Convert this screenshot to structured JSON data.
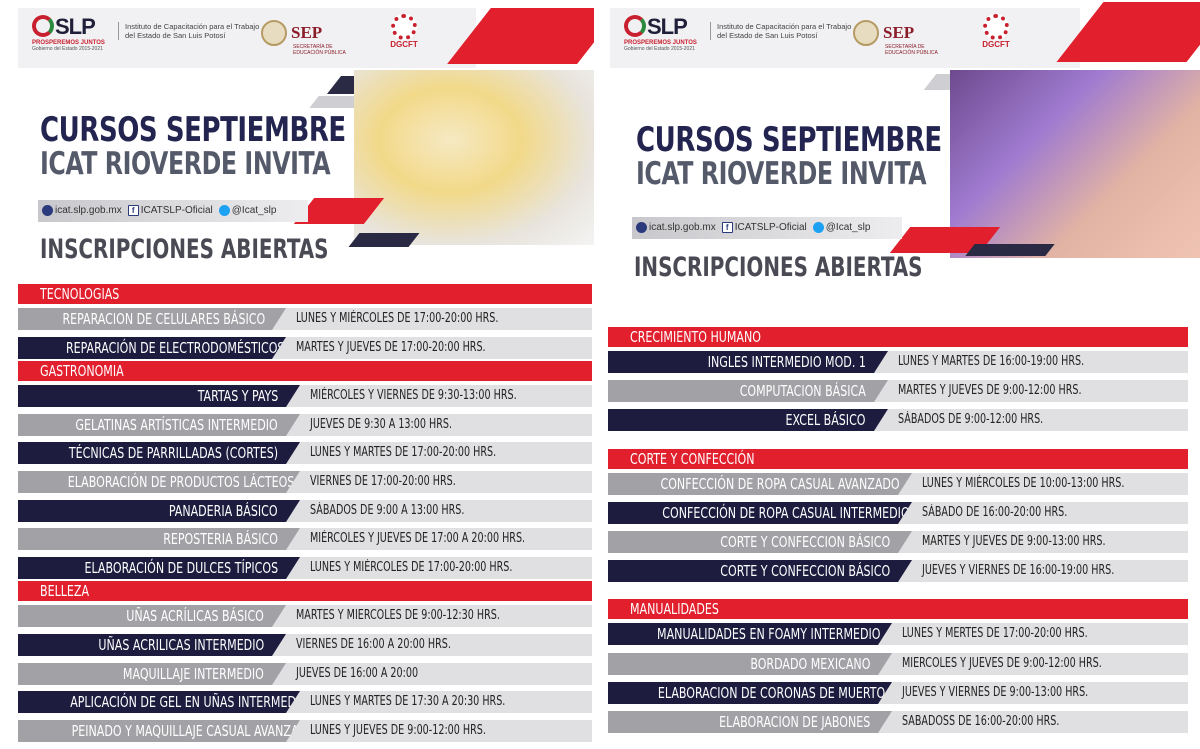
{
  "header": {
    "slp_logo": "SLP",
    "slp_tagline": "PROSPEREMOS JUNTOS",
    "slp_gov": "Gobierno del Estado 2015-2021",
    "institute": "Instituto de Capacitación para el Trabajo del Estado de San Luis Potosí",
    "sep": "SEP",
    "sep_sub": "SECRETARÍA DE EDUCACIÓN PÚBLICA",
    "dgcft": "DGCFT"
  },
  "title_line1": "CURSOS SEPTIEMBRE",
  "title_line2": "ICAT RIOVERDE INVITA",
  "social": {
    "web": "icat.slp.gob.mx",
    "facebook": "ICATSLP-Oficial",
    "twitter": "@Icat_slp"
  },
  "inscripciones": "INSCRIPCIONES ABIERTAS",
  "left": {
    "sections": [
      {
        "category": "TECNOLOGIAS",
        "courses": [
          {
            "name": "REPARACION DE CELULARES BÁSICO",
            "schedule": "LUNES Y MIÉRCOLES DE 17:00-20:00 HRS.",
            "style": "gray"
          },
          {
            "name": "REPARACIÓN DE ELECTRODOMÉSTICOS",
            "schedule": "MARTES Y JUEVES DE 17:00-20:00 HRS.",
            "style": "dark"
          }
        ]
      },
      {
        "category": "GASTRONOMIA",
        "courses": [
          {
            "name": "TARTAS Y PAYS",
            "schedule": "MIÉRCOLES Y VIERNES DE 9:30-13:00 HRS.",
            "style": "dark"
          },
          {
            "name": "GELATINAS ARTÍSTICAS INTERMEDIO",
            "schedule": "JUEVES DE 9:30 A 13:00 HRS.",
            "style": "gray"
          },
          {
            "name": "TÉCNICAS DE PARRILLADAS (CORTES)",
            "schedule": "LUNES Y MARTES DE 17:00-20:00 HRS.",
            "style": "dark"
          },
          {
            "name": "ELABORACIÓN DE PRODUCTOS LÁCTEOS",
            "schedule": "VIERNES DE 17:00-20:00 HRS.",
            "style": "gray"
          },
          {
            "name": "PANADERIA BÁSICO",
            "schedule": "SÁBADOS DE 9:00 A 13:00 HRS.",
            "style": "dark"
          },
          {
            "name": "REPOSTERIA BÁSICO",
            "schedule": "MIÉRCOLES Y JUEVES DE 17:00 A 20:00 HRS.",
            "style": "gray"
          },
          {
            "name": "ELABORACIÓN DE DULCES TÍPICOS",
            "schedule": "LUNES Y MIÉRCOLES DE 17:00-20:00 HRS.",
            "style": "dark"
          }
        ]
      },
      {
        "category": "BELLEZA",
        "courses": [
          {
            "name": "UÑAS ACRÍLICAS BÁSICO",
            "schedule": "MARTES Y MIERCOLES DE 9:00-12:30 HRS.",
            "style": "gray"
          },
          {
            "name": "UÑAS ACRILICAS INTERMEDIO",
            "schedule": "VIERNES DE 16:00 A 20:00 HRS.",
            "style": "dark"
          },
          {
            "name": "MAQUILLAJE INTERMEDIO",
            "schedule": "JUEVES DE 16:00 A 20:00",
            "style": "gray"
          },
          {
            "name": "APLICACIÓN DE GEL EN UÑAS INTERMEDIO",
            "schedule": "LUNES Y MARTES DE 17:30 A 20:30 HRS.",
            "style": "dark"
          },
          {
            "name": "PEINADO Y MAQUILLAJE CASUAL AVANZADO",
            "schedule": "LUNES Y JUEVES DE 9:00-12:00 HRS.",
            "style": "gray"
          }
        ]
      }
    ]
  },
  "right": {
    "sections": [
      {
        "category": "CRECIMIENTO HUMANO",
        "courses": [
          {
            "name": "INGLES INTERMEDIO MOD. 1",
            "schedule": "LUNES Y MARTES DE 16:00-19:00 HRS.",
            "style": "dark"
          },
          {
            "name": "COMPUTACION BÁSICA",
            "schedule": "MARTES Y JUEVES DE 9:00-12:00 HRS.",
            "style": "gray"
          },
          {
            "name": "EXCEL BÁSICO",
            "schedule": "SÁBADOS DE 9:00-12:00 HRS.",
            "style": "dark"
          }
        ]
      },
      {
        "category": "CORTE Y CONFECCIÓN",
        "courses": [
          {
            "name": "CONFECCIÓN DE ROPA CASUAL AVANZADO",
            "schedule": "LUNES Y MIÉRCOLES DE 10:00-13:00 HRS.",
            "style": "gray"
          },
          {
            "name": "CONFECCIÓN DE ROPA CASUAL INTERMEDIO",
            "schedule": "SÁBADO DE 16:00-20:00 HRS.",
            "style": "dark"
          },
          {
            "name": "CORTE Y CONFECCION BÁSICO",
            "schedule": "MARTES Y JUEVES DE 9:00-13:00 HRS.",
            "style": "gray"
          },
          {
            "name": "CORTE Y CONFECCION BÁSICO",
            "schedule": "JUEVES Y VIERNES DE 16:00-19:00 HRS.",
            "style": "dark"
          }
        ]
      },
      {
        "category": "MANUALIDADES",
        "courses": [
          {
            "name": "MANUALIDADES EN FOAMY INTERMEDIO",
            "schedule": "LUNES Y MERTES DE 17:00-20:00 HRS.",
            "style": "dark"
          },
          {
            "name": "BORDADO MEXICANO",
            "schedule": "MIERCOLES Y JUEVES DE 9:00-12:00 HRS.",
            "style": "gray"
          },
          {
            "name": "ELABORACION DE CORONAS DE MUERTO",
            "schedule": "JUEVES Y VIERNES DE 9:00-13:00 HRS.",
            "style": "dark"
          },
          {
            "name": "ELABORACION DE JABONES",
            "schedule": "SABADOSS DE 16:00-20:00 HRS.",
            "style": "gray"
          }
        ]
      }
    ]
  },
  "colors": {
    "red": "#e11f2d",
    "navy": "#1d1c3f",
    "gray": "#a2a2a6",
    "light_gray": "#e0e0e2"
  }
}
